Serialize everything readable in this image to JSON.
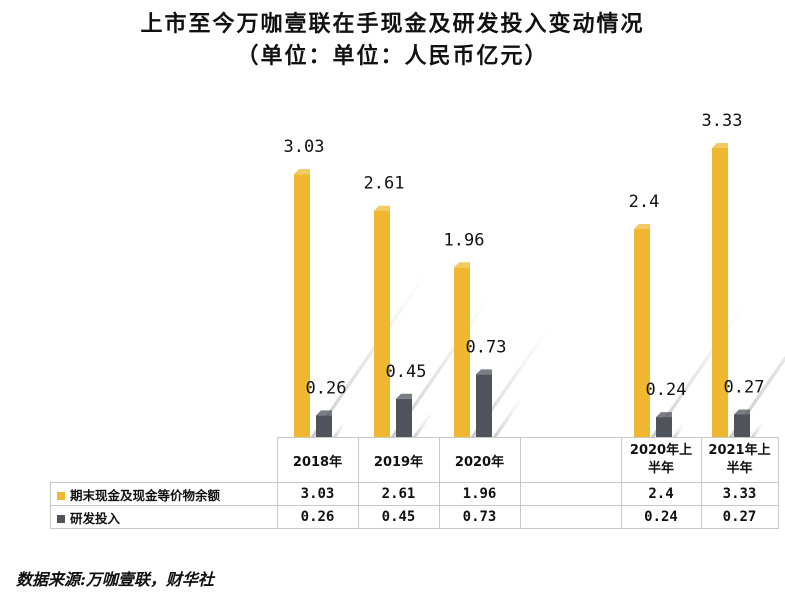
{
  "title_line1": "上市至今万咖壹联在手现金及研发投入变动情况",
  "title_line2": "（单位：单位：人民币亿元）",
  "source": "数据来源:万咖壹联，财华社",
  "chart_data": {
    "type": "bar",
    "title": "上市至今万咖壹联在手现金及研发投入变动情况（单位：单位：人民币亿元）",
    "categories": [
      "2018年",
      "2019年",
      "2020年",
      "",
      "2020年上半年",
      "2021年上半年"
    ],
    "series": [
      {
        "name": "期末现金及现金等价物余额",
        "color": "#F0B830",
        "values": [
          3.03,
          2.61,
          1.96,
          null,
          2.4,
          3.33
        ],
        "labels": [
          "3.03",
          "2.61",
          "1.96",
          "",
          "2.4",
          "3.33"
        ]
      },
      {
        "name": "研发投入",
        "color": "#4F535C",
        "values": [
          0.26,
          0.45,
          0.73,
          null,
          0.24,
          0.27
        ],
        "labels": [
          "0.26",
          "0.45",
          "0.73",
          "",
          "0.24",
          "0.27"
        ]
      }
    ],
    "ylim": [
      0,
      3.33
    ],
    "xlabel": "",
    "ylabel": "",
    "legend": "data-table-below"
  },
  "table": {
    "header": [
      "2018年",
      "2019年",
      "2020年",
      "",
      "2020年上\n半年",
      "2021年上\n半年"
    ],
    "rows": [
      {
        "name": "期末现金及现金等价物余额",
        "cells": [
          "3.03",
          "2.61",
          "1.96",
          "",
          "2.4",
          "3.33"
        ]
      },
      {
        "name": "研发投入",
        "cells": [
          "0.26",
          "0.45",
          "0.73",
          "",
          "0.24",
          "0.27"
        ]
      }
    ]
  }
}
